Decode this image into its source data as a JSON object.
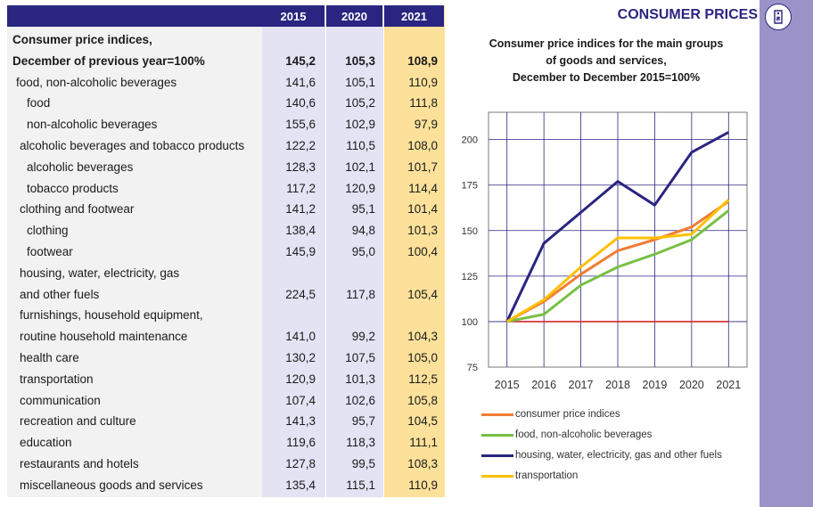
{
  "header": {
    "section_title": "CONSUMER PRICES",
    "icon": "price-tag-icon"
  },
  "table": {
    "columns": [
      "2015",
      "2020",
      "2021"
    ],
    "rows": [
      {
        "label": "Consumer price indices,",
        "v2015": "",
        "v2020": "",
        "v2021": "",
        "bold": true
      },
      {
        "label": "December of previous year=100%",
        "v2015": "145,2",
        "v2020": "105,3",
        "v2021": "108,9",
        "bold": true
      },
      {
        "label": "food, non-alcoholic beverages",
        "v2015": "141,6",
        "v2020": "105,1",
        "v2021": "110,9"
      },
      {
        "label": "food",
        "v2015": "140,6",
        "v2020": "105,2",
        "v2021": "111,8",
        "indent": 2
      },
      {
        "label": "non-alcoholic beverages",
        "v2015": "155,6",
        "v2020": "102,9",
        "v2021": "97,9",
        "indent": 2
      },
      {
        "label": "alcoholic beverages and tobacco products",
        "v2015": "122,2",
        "v2020": "110,5",
        "v2021": "108,0"
      },
      {
        "label": "alcoholic beverages",
        "v2015": "128,3",
        "v2020": "102,1",
        "v2021": "101,7",
        "indent": 2
      },
      {
        "label": "tobacco products",
        "v2015": "117,2",
        "v2020": "120,9",
        "v2021": "114,4",
        "indent": 2
      },
      {
        "label": "clothing and footwear",
        "v2015": "141,2",
        "v2020": "95,1",
        "v2021": "101,4"
      },
      {
        "label": "clothing",
        "v2015": "138,4",
        "v2020": "94,8",
        "v2021": "101,3",
        "indent": 2
      },
      {
        "label": "footwear",
        "v2015": "145,9",
        "v2020": "95,0",
        "v2021": "100,4",
        "indent": 2
      },
      {
        "label": "housing, water, electricity, gas",
        "v2015": "",
        "v2020": "",
        "v2021": ""
      },
      {
        "label": "and other fuels",
        "v2015": "224,5",
        "v2020": "117,8",
        "v2021": "105,4"
      },
      {
        "label": "furnishings, household equipment,",
        "v2015": "",
        "v2020": "",
        "v2021": ""
      },
      {
        "label": "routine household maintenance",
        "v2015": "141,0",
        "v2020": "99,2",
        "v2021": "104,3"
      },
      {
        "label": "health care",
        "v2015": "130,2",
        "v2020": "107,5",
        "v2021": "105,0"
      },
      {
        "label": "transportation",
        "v2015": "120,9",
        "v2020": "101,3",
        "v2021": "112,5"
      },
      {
        "label": "communication",
        "v2015": "107,4",
        "v2020": "102,6",
        "v2021": "105,8"
      },
      {
        "label": "recreation and culture",
        "v2015": "141,3",
        "v2020": "95,7",
        "v2021": "104,5"
      },
      {
        "label": "education",
        "v2015": "119,6",
        "v2020": "118,3",
        "v2021": "111,1"
      },
      {
        "label": "restaurants and hotels",
        "v2015": "127,8",
        "v2020": "99,5",
        "v2021": "108,3"
      },
      {
        "label": "miscellaneous goods and services",
        "v2015": "135,4",
        "v2020": "115,1",
        "v2021": "110,9"
      }
    ]
  },
  "chart_data": {
    "type": "line",
    "title_lines": [
      "Consumer price indices for the main groups",
      "of goods and services,",
      "December to December 2015=100%"
    ],
    "x": [
      "2015",
      "2016",
      "2017",
      "2018",
      "2019",
      "2020",
      "2021"
    ],
    "ylim": [
      75,
      215
    ],
    "yticks": [
      75,
      100,
      125,
      150,
      175,
      200
    ],
    "baseline": {
      "value": 100,
      "color": "#d9262b"
    },
    "series": [
      {
        "name": "consumer price indices",
        "color": "#f07d33",
        "values": [
          100,
          111,
          126,
          139,
          145,
          152,
          166
        ]
      },
      {
        "name": "food, non-alcoholic beverages",
        "color": "#77c043",
        "values": [
          100,
          104,
          120,
          130,
          137,
          145,
          161
        ]
      },
      {
        "name": "housing, water, electricity, gas and other fuels",
        "color": "#2a2580",
        "values": [
          100,
          143,
          160,
          177,
          164,
          193,
          204
        ]
      },
      {
        "name": "transportation",
        "color": "#ffc000",
        "values": [
          100,
          112,
          130,
          146,
          146,
          148,
          167
        ]
      }
    ],
    "grid": true
  }
}
